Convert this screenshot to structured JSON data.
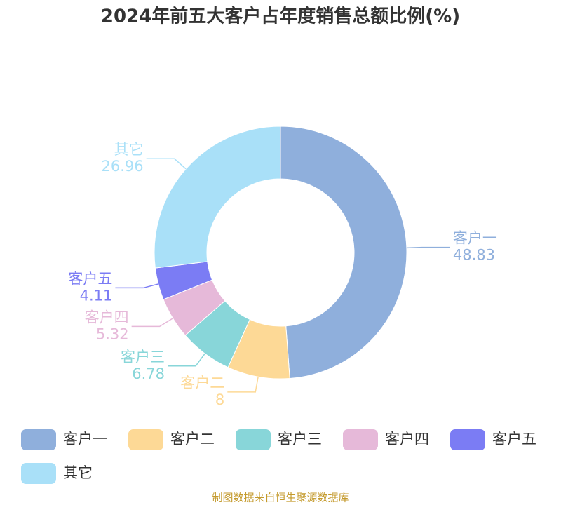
{
  "chart_data": {
    "type": "pie",
    "title": "2024年前五大客户占年度销售总额比例(%)",
    "categories": [
      "客户一",
      "客户二",
      "客户三",
      "客户四",
      "客户五",
      "其它"
    ],
    "values": [
      48.83,
      8,
      6.78,
      5.32,
      4.11,
      26.96
    ],
    "colors": [
      "#8fafdc",
      "#fdd996",
      "#88d6d9",
      "#e6b9d9",
      "#7b7cf4",
      "#a9e0f8"
    ],
    "legend": "bottom",
    "source": "制图数据来自恒生聚源数据库"
  }
}
